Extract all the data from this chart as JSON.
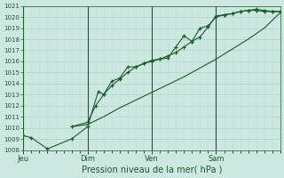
{
  "xlabel": "Pression niveau de la mer( hPa )",
  "bg_color": "#cce8e0",
  "grid_color_major": "#a8d4cc",
  "grid_color_minor": "#c0e0d8",
  "line_color": "#1a5c2a",
  "ylim": [
    1008,
    1021
  ],
  "xlim": [
    0,
    96
  ],
  "yticks": [
    1008,
    1009,
    1010,
    1011,
    1012,
    1013,
    1014,
    1015,
    1016,
    1017,
    1018,
    1019,
    1020,
    1021
  ],
  "day_labels": [
    "Jeu",
    "Dim",
    "Ven",
    "Sam"
  ],
  "day_positions": [
    0,
    24,
    48,
    72
  ],
  "series1_x": [
    0,
    3,
    9,
    18,
    24,
    28,
    30,
    33,
    36,
    39,
    42,
    45,
    48,
    51,
    54,
    57,
    60,
    63,
    66,
    69,
    72,
    75,
    78,
    81,
    84,
    87,
    90,
    93,
    96
  ],
  "series1_y": [
    1009.3,
    1009.1,
    1008.1,
    1009.0,
    1010.1,
    1013.3,
    1013.0,
    1014.2,
    1014.5,
    1015.5,
    1015.5,
    1015.8,
    1016.1,
    1016.2,
    1016.3,
    1017.3,
    1018.3,
    1017.8,
    1019.0,
    1019.2,
    1020.0,
    1020.2,
    1020.3,
    1020.5,
    1020.6,
    1020.7,
    1020.6,
    1020.5,
    1020.5
  ],
  "series2_x": [
    18,
    24,
    27,
    30,
    33,
    36,
    39,
    42,
    45,
    48,
    51,
    54,
    57,
    60,
    63,
    66,
    69,
    72,
    75,
    78,
    81,
    84,
    87,
    90,
    93,
    96
  ],
  "series2_y": [
    1010.1,
    1010.5,
    1012.0,
    1013.0,
    1013.8,
    1014.4,
    1015.0,
    1015.5,
    1015.8,
    1016.0,
    1016.2,
    1016.5,
    1016.8,
    1017.3,
    1017.8,
    1018.2,
    1019.1,
    1020.1,
    1020.2,
    1020.3,
    1020.5,
    1020.6,
    1020.6,
    1020.5,
    1020.5,
    1020.5
  ],
  "series3_x": [
    18,
    24,
    30,
    36,
    42,
    48,
    54,
    60,
    66,
    72,
    78,
    84,
    90,
    96
  ],
  "series3_y": [
    1010.1,
    1010.3,
    1011.0,
    1011.8,
    1012.5,
    1013.2,
    1013.9,
    1014.6,
    1015.4,
    1016.2,
    1017.1,
    1018.0,
    1019.0,
    1020.4
  ]
}
